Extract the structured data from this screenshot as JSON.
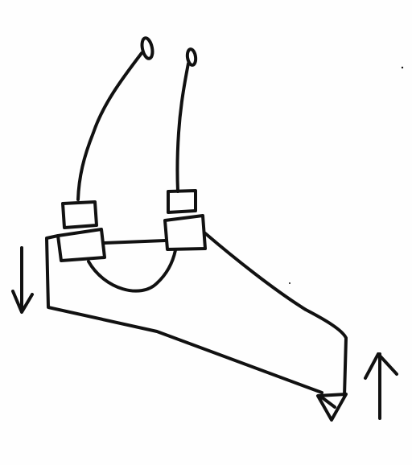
{
  "drawing": {
    "ink_color": "#111111",
    "paper_color": "#fefefe",
    "elements": [
      "wire-left",
      "wire-right",
      "contact-ring-left",
      "contact-ring-right",
      "block-left-upper",
      "block-left-lower",
      "block-right-upper",
      "block-right-lower",
      "bridge-bar",
      "bridge-arc",
      "frame-outline",
      "tip-triangle",
      "arrow-down",
      "arrow-up"
    ]
  }
}
